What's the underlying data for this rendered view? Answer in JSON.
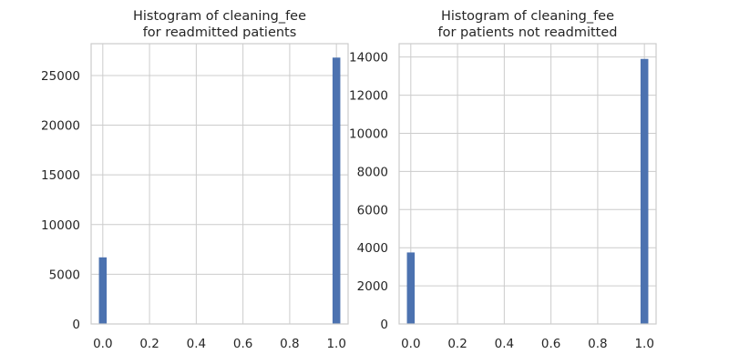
{
  "chart_data": [
    {
      "type": "bar",
      "title_lines": [
        "Histogram of cleaning_fee",
        "for readmitted patients"
      ],
      "xlabel": "",
      "ylabel": "",
      "xlim": [
        -0.05,
        1.05
      ],
      "ylim": [
        0,
        28200
      ],
      "x_ticks": [
        "0.0",
        "0.2",
        "0.4",
        "0.6",
        "0.8",
        "1.0"
      ],
      "y_ticks": [
        "0",
        "5000",
        "10000",
        "15000",
        "20000",
        "25000"
      ],
      "bin_width": 0.0333,
      "bins": [
        {
          "x": 0.0,
          "value": 6700
        },
        {
          "x": 1.0,
          "value": 26800
        }
      ],
      "color": "#4c72b0",
      "grid": true
    },
    {
      "type": "bar",
      "title_lines": [
        "Histogram of cleaning_fee",
        "for patients not readmitted"
      ],
      "xlabel": "",
      "ylabel": "",
      "xlim": [
        -0.05,
        1.05
      ],
      "ylim": [
        0,
        14700
      ],
      "x_ticks": [
        "0.0",
        "0.2",
        "0.4",
        "0.6",
        "0.8",
        "1.0"
      ],
      "y_ticks": [
        "0",
        "2000",
        "4000",
        "6000",
        "8000",
        "10000",
        "12000",
        "14000"
      ],
      "bin_width": 0.0333,
      "bins": [
        {
          "x": 0.0,
          "value": 3750
        },
        {
          "x": 1.0,
          "value": 13900
        }
      ],
      "color": "#4c72b0",
      "grid": true
    }
  ]
}
